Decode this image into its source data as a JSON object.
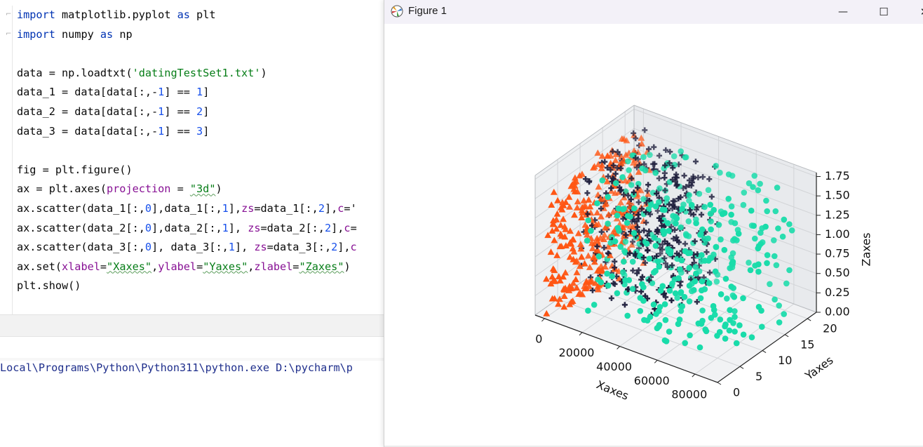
{
  "editor": {
    "lines": [
      [
        [
          "kw",
          "import"
        ],
        [
          "t",
          " matplotlib.pyplot "
        ],
        [
          "kw",
          "as"
        ],
        [
          "t",
          " plt"
        ]
      ],
      [
        [
          "kw",
          "import"
        ],
        [
          "t",
          " numpy "
        ],
        [
          "kw",
          "as"
        ],
        [
          "t",
          " np"
        ]
      ],
      [],
      [
        [
          "t",
          "data = np.loadtxt("
        ],
        [
          "str",
          "'datingTestSet1.txt'"
        ],
        [
          "t",
          ")"
        ]
      ],
      [
        [
          "t",
          "data_1 = data[data[:,-"
        ],
        [
          "num",
          "1"
        ],
        [
          "t",
          "] == "
        ],
        [
          "num",
          "1"
        ],
        [
          "t",
          "]"
        ]
      ],
      [
        [
          "t",
          "data_2 = data[data[:,-"
        ],
        [
          "num",
          "1"
        ],
        [
          "t",
          "] == "
        ],
        [
          "num",
          "2"
        ],
        [
          "t",
          "]"
        ]
      ],
      [
        [
          "t",
          "data_3 = data[data[:,-"
        ],
        [
          "num",
          "1"
        ],
        [
          "t",
          "] == "
        ],
        [
          "num",
          "3"
        ],
        [
          "t",
          "]"
        ]
      ],
      [],
      [
        [
          "t",
          "fig = plt.figure()"
        ]
      ],
      [
        [
          "t",
          "ax = plt.axes("
        ],
        [
          "prm",
          "projection"
        ],
        [
          "t",
          " = "
        ],
        [
          "str",
          "\"3d\""
        ],
        [
          "t",
          ")"
        ]
      ],
      [
        [
          "t",
          "ax.scatter(data_1[:,"
        ],
        [
          "num",
          "0"
        ],
        [
          "t",
          "],data_1[:,"
        ],
        [
          "num",
          "1"
        ],
        [
          "t",
          "],"
        ],
        [
          "prm",
          "zs"
        ],
        [
          "t",
          "=data_1[:,"
        ],
        [
          "num",
          "2"
        ],
        [
          "t",
          "],"
        ],
        [
          "prm",
          "c"
        ],
        [
          "t",
          "='"
        ]
      ],
      [
        [
          "t",
          "ax.scatter(data_2[:,"
        ],
        [
          "num",
          "0"
        ],
        [
          "t",
          "],data_2[:,"
        ],
        [
          "num",
          "1"
        ],
        [
          "t",
          "], "
        ],
        [
          "prm",
          "zs"
        ],
        [
          "t",
          "=data_2[:,"
        ],
        [
          "num",
          "2"
        ],
        [
          "t",
          "],"
        ],
        [
          "prm",
          "c"
        ],
        [
          "t",
          "="
        ]
      ],
      [
        [
          "t",
          "ax.scatter(data_3[:,"
        ],
        [
          "num",
          "0"
        ],
        [
          "t",
          "], data_3[:,"
        ],
        [
          "num",
          "1"
        ],
        [
          "t",
          "], "
        ],
        [
          "prm",
          "zs"
        ],
        [
          "t",
          "=data_3[:,"
        ],
        [
          "num",
          "2"
        ],
        [
          "t",
          "],"
        ],
        [
          "prm",
          "c"
        ]
      ],
      [
        [
          "t",
          "ax.set("
        ],
        [
          "prm",
          "xlabel"
        ],
        [
          "t",
          "="
        ],
        [
          "str",
          "\"Xaxes\""
        ],
        [
          "t",
          ","
        ],
        [
          "prm",
          "ylabel"
        ],
        [
          "t",
          "="
        ],
        [
          "str",
          "\"Yaxes\""
        ],
        [
          "t",
          ","
        ],
        [
          "prm",
          "zlabel"
        ],
        [
          "t",
          "="
        ],
        [
          "str",
          "\"Zaxes\""
        ],
        [
          "t",
          ")"
        ]
      ],
      [
        [
          "t",
          "plt.show()"
        ]
      ]
    ],
    "run_output": "Local\\Programs\\Python\\Python311\\python.exe D:\\pycharm\\p"
  },
  "figure_window": {
    "title": "Figure 1",
    "minimize_glyph": "—",
    "maximize_glyph": "☐",
    "close_glyph": "✕"
  },
  "colors": {
    "series_1": "#ff5513",
    "series_2": "#1e1e3c",
    "series_3": "#19dcaa",
    "keyword": "#0033b3",
    "string": "#067d17",
    "number": "#1750eb",
    "param": "#871094"
  },
  "chart_data": {
    "type": "scatter",
    "projection": "3d",
    "xlabel": "Xaxes",
    "ylabel": "Yaxes",
    "zlabel": "Zaxes",
    "xlim": [
      -5000,
      92000
    ],
    "ylim": [
      0,
      22
    ],
    "zlim": [
      0,
      1.8
    ],
    "x_ticks": [
      "0",
      "20000",
      "40000",
      "60000",
      "80000"
    ],
    "y_ticks": [
      "0",
      "5",
      "10",
      "15",
      "20"
    ],
    "z_ticks": [
      "0.00",
      "0.25",
      "0.50",
      "0.75",
      "1.00",
      "1.25",
      "1.50",
      "1.75"
    ],
    "grid": true,
    "series": [
      {
        "marker": "triangle",
        "color": "#ff5513",
        "x_range": [
          0,
          18000
        ],
        "y_range": [
          0,
          20
        ],
        "z_range": [
          0.05,
          1.7
        ],
        "count": 300
      },
      {
        "marker": "plus",
        "color": "#1e1e3c",
        "x_range": [
          0,
          48000
        ],
        "y_range": [
          7,
          20
        ],
        "z_range": [
          0.05,
          1.7
        ],
        "count": 330
      },
      {
        "marker": "circle",
        "color": "#19dcaa",
        "x_range": [
          10000,
          90000
        ],
        "y_range": [
          1,
          20
        ],
        "z_range": [
          0.05,
          1.7
        ],
        "count": 340
      }
    ]
  }
}
